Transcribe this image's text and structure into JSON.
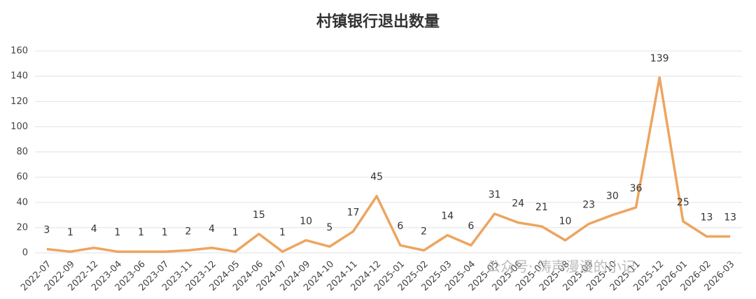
{
  "chart_data": {
    "type": "line",
    "title": "村镇银行退出数量",
    "categories": [
      "2022-07",
      "2022-09",
      "2022-12",
      "2023-04",
      "2023-06",
      "2023-07",
      "2023-11",
      "2023-12",
      "2024-05",
      "2024-06",
      "2024-07",
      "2024-09",
      "2024-10",
      "2024-11",
      "2024-12",
      "2025-01",
      "2025-02",
      "2025-03",
      "2025-04",
      "2025-05",
      "2025-06",
      "2025-07",
      "2025-08",
      "2025-09",
      "2025-10",
      "2025-11",
      "2025-12",
      "2026-01",
      "2026-02",
      "2026-03"
    ],
    "values": [
      3,
      1,
      4,
      1,
      1,
      1,
      2,
      4,
      1,
      15,
      1,
      10,
      5,
      17,
      45,
      6,
      2,
      14,
      6,
      31,
      24,
      21,
      10,
      23,
      30,
      36,
      139,
      25,
      13,
      13
    ],
    "color": "#eda55f",
    "ylim": [
      0,
      160
    ],
    "yticks": [
      0,
      20,
      40,
      60,
      80,
      100,
      120,
      140,
      160
    ],
    "grid": true,
    "watermark": "公众号· 涛声漫漫的小记"
  }
}
